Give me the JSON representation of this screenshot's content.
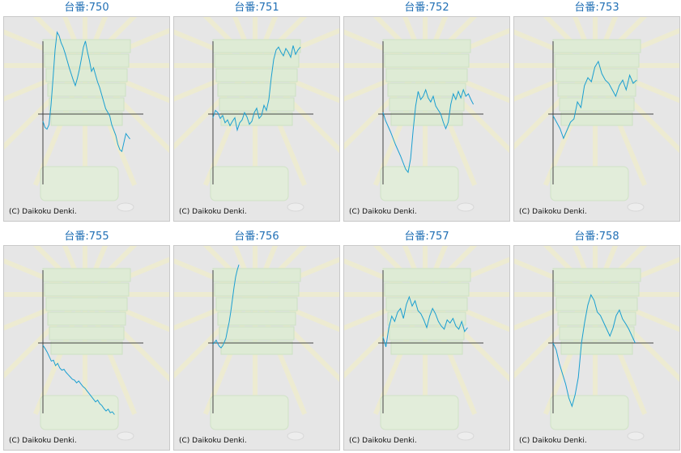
{
  "copyright": "(C) Daikoku Denki.",
  "colors": {
    "line": "#1a9fd1",
    "title": "#1f6fb5",
    "axis": "#444444",
    "panel_bg": "#e6e6e6"
  },
  "chart_data": [
    {
      "type": "line",
      "title": "台番:750",
      "values": [
        -8,
        -15,
        -17,
        -12,
        10,
        40,
        72,
        92,
        88,
        80,
        75,
        68,
        60,
        52,
        45,
        38,
        32,
        40,
        50,
        62,
        75,
        82,
        70,
        60,
        48,
        52,
        44,
        36,
        30,
        22,
        14,
        6,
        2,
        -2,
        -12,
        -18,
        -24,
        -34,
        -40,
        -42,
        -32,
        -22,
        -25,
        -28
      ]
    },
    {
      "type": "line",
      "title": "台番:751",
      "values": [
        -5,
        5,
        2,
        -6,
        -2,
        -12,
        -8,
        -16,
        -10,
        -5,
        -22,
        -12,
        -8,
        2,
        -4,
        -14,
        -10,
        2,
        8,
        -6,
        -2,
        12,
        5,
        20,
        50,
        75,
        88,
        92,
        85,
        80,
        90,
        85,
        78,
        94,
        82,
        88,
        92
      ]
    },
    {
      "type": "line",
      "title": "台番:752",
      "values": [
        2,
        -8,
        -15,
        -22,
        -30,
        -38,
        -45,
        -52,
        -60,
        -68,
        -72,
        -55,
        -20,
        10,
        28,
        18,
        22,
        30,
        20,
        15,
        22,
        10,
        5,
        0,
        -10,
        -18,
        -10,
        12,
        25,
        18,
        28,
        20,
        30,
        22,
        25,
        18,
        12
      ]
    },
    {
      "type": "line",
      "title": "台番:753",
      "values": [
        -2,
        -10,
        -18,
        -30,
        -20,
        -10,
        -6,
        15,
        8,
        35,
        45,
        40,
        58,
        65,
        50,
        42,
        38,
        30,
        22,
        35,
        42,
        30,
        48,
        38,
        42
      ]
    },
    {
      "type": "line",
      "title": "台番:755",
      "values": [
        -5,
        -12,
        -20,
        -30,
        -40,
        -38,
        -50,
        -45,
        -55,
        -60,
        -58,
        -65,
        -70,
        -75,
        -80,
        -82,
        -88,
        -84,
        -90,
        -96,
        -100,
        -106,
        -112,
        -118,
        -124,
        -130,
        -126,
        -134,
        -138,
        -145,
        -150,
        -146,
        -154,
        -152,
        -158
      ]
    },
    {
      "type": "line",
      "title": "台番:756",
      "values": [
        -4,
        2,
        8,
        -2,
        -10,
        -14,
        -8,
        2,
        14,
        38,
        60,
        90,
        125,
        160,
        190,
        210,
        225
      ]
    },
    {
      "type": "line",
      "title": "台番:757",
      "values": [
        8,
        -5,
        20,
        35,
        28,
        40,
        45,
        32,
        50,
        60,
        48,
        55,
        42,
        38,
        30,
        20,
        35,
        45,
        38,
        28,
        22,
        18,
        30,
        26,
        32,
        22,
        18,
        28,
        15,
        20
      ]
    },
    {
      "type": "line",
      "title": "台番:758",
      "values": [
        0,
        -10,
        -30,
        -45,
        -60,
        -80,
        -92,
        -75,
        -50,
        0,
        30,
        55,
        70,
        62,
        45,
        40,
        30,
        20,
        10,
        22,
        40,
        48,
        35,
        28,
        20,
        10,
        0
      ]
    }
  ]
}
